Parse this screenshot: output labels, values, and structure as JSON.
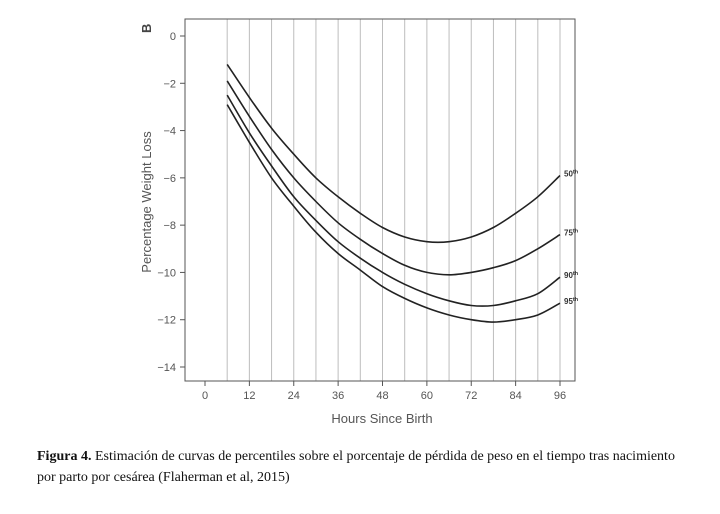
{
  "figure": {
    "panel_letter": "B",
    "caption": {
      "head": "Figura 4.",
      "text": " Estimación de curvas de percentiles sobre el porcentaje de pérdida de peso en el tiempo tras nacimiento por parto por cesárea (Flaherman et al, 2015)"
    }
  },
  "chart_data": {
    "type": "line",
    "title": "",
    "xlabel": "Hours Since Birth",
    "ylabel": "Percentage Weight Loss",
    "xlim": [
      0,
      96
    ],
    "ylim": [
      -14,
      0
    ],
    "x_ticks": [
      0,
      12,
      24,
      36,
      48,
      60,
      72,
      84,
      96
    ],
    "y_ticks": [
      0,
      -2,
      -4,
      -6,
      -8,
      -10,
      -12,
      -14
    ],
    "grid": "vertical",
    "series": [
      {
        "name": "50th",
        "label_base": "50",
        "label_sup": "th",
        "x": [
          6,
          12,
          18,
          24,
          30,
          36,
          42,
          48,
          54,
          60,
          66,
          72,
          78,
          84,
          90,
          96
        ],
        "y": [
          -1.2,
          -2.6,
          -3.9,
          -5.0,
          -6.0,
          -6.8,
          -7.5,
          -8.1,
          -8.5,
          -8.7,
          -8.7,
          -8.5,
          -8.1,
          -7.5,
          -6.8,
          -5.9
        ]
      },
      {
        "name": "75th",
        "label_base": "75",
        "label_sup": "th",
        "x": [
          6,
          12,
          18,
          24,
          30,
          36,
          42,
          48,
          54,
          60,
          66,
          72,
          78,
          84,
          90,
          96
        ],
        "y": [
          -1.9,
          -3.4,
          -4.8,
          -6.0,
          -7.0,
          -7.9,
          -8.6,
          -9.2,
          -9.7,
          -10.0,
          -10.1,
          -10.0,
          -9.8,
          -9.5,
          -9.0,
          -8.4
        ]
      },
      {
        "name": "90th",
        "label_base": "90",
        "label_sup": "th",
        "x": [
          6,
          12,
          18,
          24,
          30,
          36,
          42,
          48,
          54,
          60,
          66,
          72,
          78,
          84,
          90,
          96
        ],
        "y": [
          -2.5,
          -4.1,
          -5.5,
          -6.8,
          -7.8,
          -8.7,
          -9.4,
          -10.0,
          -10.5,
          -10.9,
          -11.2,
          -11.4,
          -11.4,
          -11.2,
          -10.9,
          -10.2
        ]
      },
      {
        "name": "95th",
        "label_base": "95",
        "label_sup": "th",
        "x": [
          6,
          12,
          18,
          24,
          30,
          36,
          42,
          48,
          54,
          60,
          66,
          72,
          78,
          84,
          90,
          96
        ],
        "y": [
          -2.9,
          -4.5,
          -6.0,
          -7.2,
          -8.3,
          -9.2,
          -9.9,
          -10.6,
          -11.1,
          -11.5,
          -11.8,
          -12.0,
          -12.1,
          -12.0,
          -11.8,
          -11.3
        ]
      }
    ],
    "colors": {
      "line": "#222222",
      "grid": "#bdbdbd",
      "axis": "#555555"
    }
  }
}
